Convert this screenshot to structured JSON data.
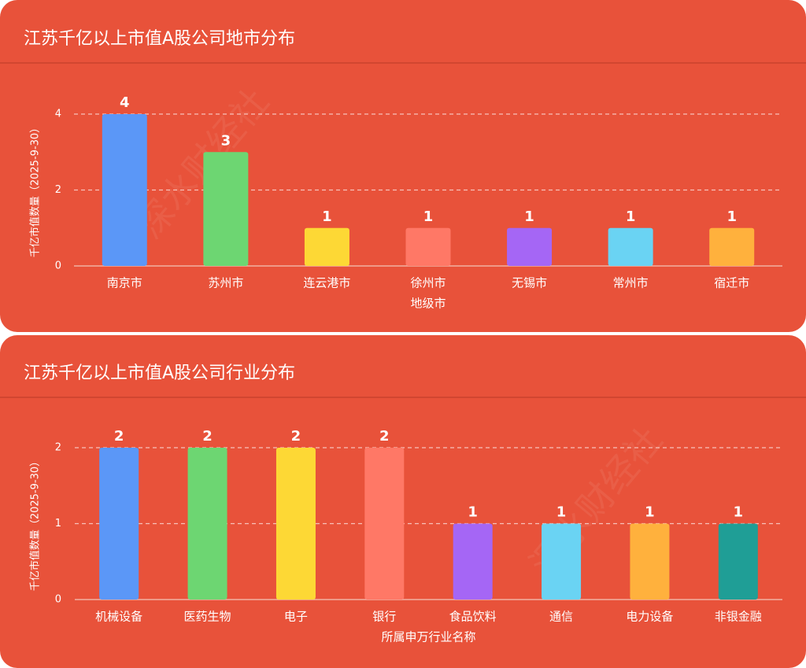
{
  "chart_data": [
    {
      "type": "bar",
      "title": "江苏千亿以上市值A股公司地市分布",
      "y_label": "千亿市值数量（2025-9-30）",
      "x_label": "地级市",
      "categories": [
        "南京市",
        "苏州市",
        "连云港市",
        "徐州市",
        "无锡市",
        "常州市",
        "宿迁市"
      ],
      "values": [
        4,
        3,
        1,
        1,
        1,
        1,
        1
      ],
      "colors": [
        "#5b97f7",
        "#6dd672",
        "#fdd835",
        "#ff7866",
        "#a566f5",
        "#6ad3f3",
        "#ffb13d"
      ],
      "ylim": [
        0,
        4
      ],
      "yticks": [
        0,
        2,
        4
      ],
      "grid": true
    },
    {
      "type": "bar",
      "title": "江苏千亿以上市值A股公司行业分布",
      "y_label": "千亿市值数量（2025-9-30）",
      "x_label": "所属申万行业名称",
      "categories": [
        "机械设备",
        "医药生物",
        "电子",
        "银行",
        "食品饮料",
        "通信",
        "电力设备",
        "非银金融"
      ],
      "values": [
        2,
        2,
        2,
        2,
        1,
        1,
        1,
        1
      ],
      "colors": [
        "#5b97f7",
        "#6dd672",
        "#fdd835",
        "#ff7866",
        "#a566f5",
        "#6ad3f3",
        "#ffb13d",
        "#1f9e96"
      ],
      "ylim": [
        0,
        2
      ],
      "yticks": [
        0,
        1,
        2
      ],
      "grid": true
    }
  ],
  "watermark": "深水财经社"
}
